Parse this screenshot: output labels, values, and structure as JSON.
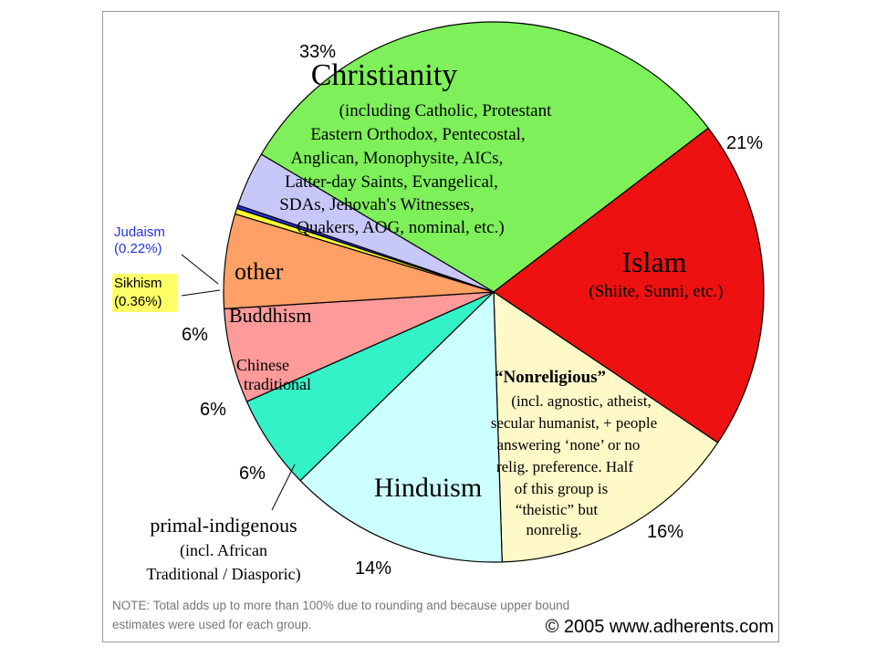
{
  "chart_data": {
    "type": "pie",
    "slices": [
      {
        "label": "Christianity",
        "value": 33,
        "pct_label": "33%",
        "color": "#7ef05a",
        "sub": [
          "(including Catholic, Protestant",
          "Eastern Orthodox, Pentecostal,",
          "Anglican, Monophysite, AICs,",
          "Latter-day Saints, Evangelical,",
          "SDAs, Jehovah's Witnesses,",
          "Quakers, AOG, nominal, etc.)"
        ]
      },
      {
        "label": "Islam",
        "value": 21,
        "pct_label": "21%",
        "color": "#ee1111",
        "sub": [
          "(Shiite, Sunni, etc.)"
        ]
      },
      {
        "label": "“Nonreligious”",
        "value": 16,
        "pct_label": "16%",
        "color": "#fff9c8",
        "sub": [
          "(incl. agnostic, atheist,",
          "secular humanist, + people",
          "answering ‘none’ or no",
          "relig. preference. Half",
          "of this group is",
          "“theistic” but",
          "nonrelig."
        ]
      },
      {
        "label": "Hinduism",
        "value": 14,
        "pct_label": "14%",
        "color": "#ccffff",
        "sub": []
      },
      {
        "label": "primal-indigenous",
        "value": 6,
        "pct_label": "6%",
        "color": "#33f2c8",
        "sub": [
          "(incl. African",
          "Traditional / Diasporic)"
        ]
      },
      {
        "label": "Chinese traditional",
        "value": 6,
        "pct_label": "6%",
        "color": "#ff9a9a",
        "sub": []
      },
      {
        "label": "Buddhism",
        "value": 6,
        "pct_label": "6%",
        "color": "#ffa066",
        "sub": []
      },
      {
        "label": "Sikhism",
        "value": 0.36,
        "pct_label": "(0.36%)",
        "color": "#ffff33",
        "sub": []
      },
      {
        "label": "Judaism",
        "value": 0.22,
        "pct_label": "(0.22%)",
        "color": "#2233dd",
        "sub": []
      },
      {
        "label": "other",
        "value": 3.5,
        "pct_label": "",
        "color": "#c8c8f8",
        "sub": []
      }
    ]
  },
  "labels": {
    "chinese_line1": "Chinese",
    "chinese_line2": "traditional",
    "judaism_name": "Judaism",
    "judaism_pct": "(0.22%)",
    "sikhism_name": "Sikhism",
    "sikhism_pct": "(0.36%)"
  },
  "note": {
    "line1": "NOTE: Total adds up to more than 100% due to rounding and because upper bound",
    "line2": "estimates were used for each group."
  },
  "credit": "© 2005 www.adherents.com",
  "colors": {
    "outline": "#000000",
    "judaism_text": "#2233dd"
  }
}
